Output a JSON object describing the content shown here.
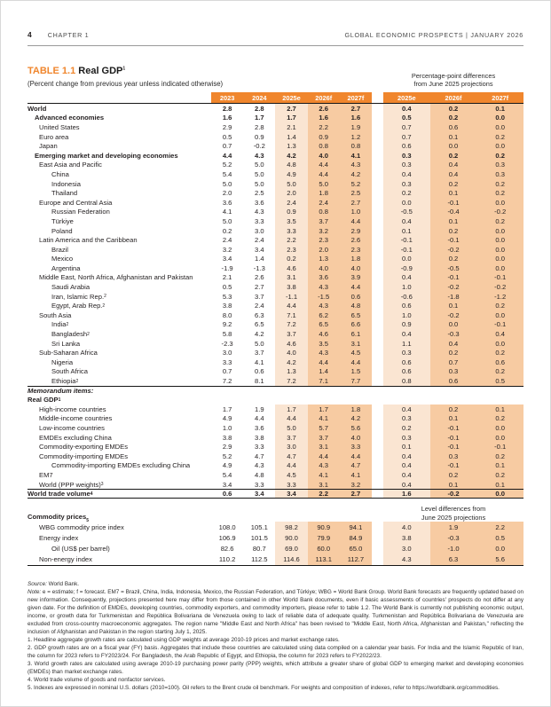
{
  "page_header": {
    "page_number": "4",
    "chapter": "CHAPTER 1",
    "right": "GLOBAL ECONOMIC PROSPECTS | JANUARY 2026"
  },
  "table": {
    "label": "TABLE 1.1",
    "title": "Real GDP",
    "title_sup": "1",
    "subtitle": "(Percent change from previous year unless indicated otherwise)",
    "right_note_line1": "Percentage-point differences",
    "right_note_line2": "from June 2025 projections",
    "columns": [
      "2023",
      "2024",
      "2025e",
      "2026f",
      "2027f"
    ],
    "diff_columns": [
      "2025e",
      "2026f",
      "2027f"
    ],
    "main_rows": [
      {
        "label": "World",
        "indent": 0,
        "bold": true,
        "values": [
          "2.8",
          "2.8",
          "2.7",
          "2.6",
          "2.7"
        ],
        "diffs": [
          "0.4",
          "0.2",
          "0.1"
        ]
      },
      {
        "label": "Advanced economies",
        "indent": 1,
        "bold": true,
        "values": [
          "1.6",
          "1.7",
          "1.7",
          "1.6",
          "1.6"
        ],
        "diffs": [
          "0.5",
          "0.2",
          "0.0"
        ]
      },
      {
        "label": "United States",
        "indent": 2,
        "values": [
          "2.9",
          "2.8",
          "2.1",
          "2.2",
          "1.9"
        ],
        "diffs": [
          "0.7",
          "0.6",
          "0.0"
        ]
      },
      {
        "label": "Euro area",
        "indent": 2,
        "values": [
          "0.5",
          "0.9",
          "1.4",
          "0.9",
          "1.2"
        ],
        "diffs": [
          "0.7",
          "0.1",
          "0.2"
        ]
      },
      {
        "label": "Japan",
        "indent": 2,
        "values": [
          "0.7",
          "-0.2",
          "1.3",
          "0.8",
          "0.8"
        ],
        "diffs": [
          "0.6",
          "0.0",
          "0.0"
        ]
      },
      {
        "label": "Emerging market and developing economies",
        "indent": 1,
        "bold": true,
        "values": [
          "4.4",
          "4.3",
          "4.2",
          "4.0",
          "4.1"
        ],
        "diffs": [
          "0.3",
          "0.2",
          "0.2"
        ]
      },
      {
        "label": "East Asia and Pacific",
        "indent": 2,
        "values": [
          "5.2",
          "5.0",
          "4.8",
          "4.4",
          "4.3"
        ],
        "diffs": [
          "0.3",
          "0.4",
          "0.3"
        ]
      },
      {
        "label": "China",
        "indent": 3,
        "values": [
          "5.4",
          "5.0",
          "4.9",
          "4.4",
          "4.2"
        ],
        "diffs": [
          "0.4",
          "0.4",
          "0.3"
        ]
      },
      {
        "label": "Indonesia",
        "indent": 3,
        "values": [
          "5.0",
          "5.0",
          "5.0",
          "5.0",
          "5.2"
        ],
        "diffs": [
          "0.3",
          "0.2",
          "0.2"
        ]
      },
      {
        "label": "Thailand",
        "indent": 3,
        "values": [
          "2.0",
          "2.5",
          "2.0",
          "1.8",
          "2.5"
        ],
        "diffs": [
          "0.2",
          "0.1",
          "0.2"
        ]
      },
      {
        "label": "Europe and Central Asia",
        "indent": 2,
        "values": [
          "3.6",
          "3.6",
          "2.4",
          "2.4",
          "2.7"
        ],
        "diffs": [
          "0.0",
          "-0.1",
          "0.0"
        ]
      },
      {
        "label": "Russian Federation",
        "indent": 3,
        "values": [
          "4.1",
          "4.3",
          "0.9",
          "0.8",
          "1.0"
        ],
        "diffs": [
          "-0.5",
          "-0.4",
          "-0.2"
        ]
      },
      {
        "label": "Türkiye",
        "indent": 3,
        "values": [
          "5.0",
          "3.3",
          "3.5",
          "3.7",
          "4.4"
        ],
        "diffs": [
          "0.4",
          "0.1",
          "0.2"
        ]
      },
      {
        "label": "Poland",
        "indent": 3,
        "values": [
          "0.2",
          "3.0",
          "3.3",
          "3.2",
          "2.9"
        ],
        "diffs": [
          "0.1",
          "0.2",
          "0.0"
        ]
      },
      {
        "label": "Latin America and the Caribbean",
        "indent": 2,
        "values": [
          "2.4",
          "2.4",
          "2.2",
          "2.3",
          "2.6"
        ],
        "diffs": [
          "-0.1",
          "-0.1",
          "0.0"
        ]
      },
      {
        "label": "Brazil",
        "indent": 3,
        "values": [
          "3.2",
          "3.4",
          "2.3",
          "2.0",
          "2.3"
        ],
        "diffs": [
          "-0.1",
          "-0.2",
          "0.0"
        ]
      },
      {
        "label": "Mexico",
        "indent": 3,
        "values": [
          "3.4",
          "1.4",
          "0.2",
          "1.3",
          "1.8"
        ],
        "diffs": [
          "0.0",
          "0.2",
          "0.0"
        ]
      },
      {
        "label": "Argentina",
        "indent": 3,
        "values": [
          "-1.9",
          "-1.3",
          "4.6",
          "4.0",
          "4.0"
        ],
        "diffs": [
          "-0.9",
          "-0.5",
          "0.0"
        ]
      },
      {
        "label": "Middle East, North Africa, Afghanistan and Pakistan",
        "indent": 2,
        "values": [
          "2.1",
          "2.6",
          "3.1",
          "3.6",
          "3.9"
        ],
        "diffs": [
          "0.4",
          "-0.1",
          "-0.1"
        ]
      },
      {
        "label": "Saudi Arabia",
        "indent": 3,
        "values": [
          "0.5",
          "2.7",
          "3.8",
          "4.3",
          "4.4"
        ],
        "diffs": [
          "1.0",
          "-0.2",
          "-0.2"
        ]
      },
      {
        "label": "Iran, Islamic Rep.",
        "sup": "2",
        "indent": 3,
        "values": [
          "5.3",
          "3.7",
          "-1.1",
          "-1.5",
          "0.6"
        ],
        "diffs": [
          "-0.6",
          "-1.8",
          "-1.2"
        ]
      },
      {
        "label": "Egypt, Arab Rep.",
        "sup": "2",
        "indent": 3,
        "values": [
          "3.8",
          "2.4",
          "4.4",
          "4.3",
          "4.8"
        ],
        "diffs": [
          "0.6",
          "0.1",
          "0.2"
        ]
      },
      {
        "label": "South Asia",
        "indent": 2,
        "values": [
          "8.0",
          "6.3",
          "7.1",
          "6.2",
          "6.5"
        ],
        "diffs": [
          "1.0",
          "-0.2",
          "0.0"
        ]
      },
      {
        "label": "India",
        "sup": "2",
        "indent": 3,
        "values": [
          "9.2",
          "6.5",
          "7.2",
          "6.5",
          "6.6"
        ],
        "diffs": [
          "0.9",
          "0.0",
          "-0.1"
        ]
      },
      {
        "label": "Bangladesh",
        "sup": "2",
        "indent": 3,
        "values": [
          "5.8",
          "4.2",
          "3.7",
          "4.6",
          "6.1"
        ],
        "diffs": [
          "0.4",
          "-0.3",
          "0.4"
        ]
      },
      {
        "label": "Sri Lanka",
        "indent": 3,
        "values": [
          "-2.3",
          "5.0",
          "4.6",
          "3.5",
          "3.1"
        ],
        "diffs": [
          "1.1",
          "0.4",
          "0.0"
        ]
      },
      {
        "label": "Sub-Saharan Africa",
        "indent": 2,
        "values": [
          "3.0",
          "3.7",
          "4.0",
          "4.3",
          "4.5"
        ],
        "diffs": [
          "0.3",
          "0.2",
          "0.2"
        ]
      },
      {
        "label": "Nigeria",
        "indent": 3,
        "values": [
          "3.3",
          "4.1",
          "4.2",
          "4.4",
          "4.4"
        ],
        "diffs": [
          "0.6",
          "0.7",
          "0.6"
        ]
      },
      {
        "label": "South Africa",
        "indent": 3,
        "values": [
          "0.7",
          "0.6",
          "1.3",
          "1.4",
          "1.5"
        ],
        "diffs": [
          "0.6",
          "0.3",
          "0.2"
        ]
      },
      {
        "label": "Ethiopia",
        "sup": "2",
        "indent": 3,
        "values": [
          "7.2",
          "8.1",
          "7.2",
          "7.1",
          "7.7"
        ],
        "diffs": [
          "0.8",
          "0.6",
          "0.5"
        ]
      }
    ],
    "memo_rows": [
      {
        "label": "Memorandum items:",
        "indent": 0,
        "bold": true,
        "italic": true,
        "top": true
      },
      {
        "label": "Real GDP",
        "sup": "1",
        "indent": 0,
        "bold": true
      },
      {
        "label": "High-income countries",
        "indent": 2,
        "values": [
          "1.7",
          "1.9",
          "1.7",
          "1.7",
          "1.8"
        ],
        "diffs": [
          "0.4",
          "0.2",
          "0.1"
        ]
      },
      {
        "label": "Middle-income countries",
        "indent": 2,
        "values": [
          "4.9",
          "4.4",
          "4.4",
          "4.1",
          "4.2"
        ],
        "diffs": [
          "0.3",
          "0.1",
          "0.2"
        ]
      },
      {
        "label": "Low-income countries",
        "indent": 2,
        "values": [
          "1.0",
          "3.6",
          "5.0",
          "5.7",
          "5.6"
        ],
        "diffs": [
          "0.2",
          "-0.1",
          "0.0"
        ]
      },
      {
        "label": "EMDEs excluding China",
        "indent": 2,
        "values": [
          "3.8",
          "3.8",
          "3.7",
          "3.7",
          "4.0"
        ],
        "diffs": [
          "0.3",
          "-0.1",
          "0.0"
        ]
      },
      {
        "label": "Commodity-exporting EMDEs",
        "indent": 2,
        "values": [
          "2.9",
          "3.3",
          "3.0",
          "3.1",
          "3.3"
        ],
        "diffs": [
          "0.1",
          "-0.1",
          "-0.1"
        ]
      },
      {
        "label": "Commodity-importing EMDEs",
        "indent": 2,
        "values": [
          "5.2",
          "4.7",
          "4.7",
          "4.4",
          "4.4"
        ],
        "diffs": [
          "0.4",
          "0.3",
          "0.2"
        ]
      },
      {
        "label": "Commodity-importing EMDEs excluding China",
        "indent": 3,
        "values": [
          "4.9",
          "4.3",
          "4.4",
          "4.3",
          "4.7"
        ],
        "diffs": [
          "0.4",
          "-0.1",
          "0.1"
        ]
      },
      {
        "label": "EM7",
        "indent": 2,
        "values": [
          "5.4",
          "4.8",
          "4.5",
          "4.1",
          "4.1"
        ],
        "diffs": [
          "0.4",
          "0.2",
          "0.2"
        ]
      },
      {
        "label": "World (PPP weights)",
        "sup": "3",
        "indent": 2,
        "values": [
          "3.4",
          "3.3",
          "3.3",
          "3.1",
          "3.2"
        ],
        "diffs": [
          "0.4",
          "0.1",
          "0.1"
        ]
      },
      {
        "label": "World trade volume",
        "sup": "4",
        "indent": 0,
        "bold": true,
        "top": true,
        "bottom": true,
        "values": [
          "0.6",
          "3.4",
          "3.4",
          "2.2",
          "2.7"
        ],
        "diffs": [
          "1.6",
          "-0.2",
          "0.0"
        ]
      }
    ],
    "commodity_header": {
      "label": "Commodity prices",
      "sup": "5",
      "note_line1": "Level differences from",
      "note_line2": "June 2025 projections"
    },
    "commodity_rows": [
      {
        "label": "WBG commodity price index",
        "indent": 2,
        "values": [
          "108.0",
          "105.1",
          "98.2",
          "90.9",
          "94.1"
        ],
        "diffs": [
          "4.0",
          "1.9",
          "2.2"
        ]
      },
      {
        "label": "Energy index",
        "indent": 2,
        "values": [
          "106.9",
          "101.5",
          "90.0",
          "79.9",
          "84.9"
        ],
        "diffs": [
          "3.8",
          "-0.3",
          "0.5"
        ]
      },
      {
        "label": "Oil (US$ per barrel)",
        "indent": 3,
        "values": [
          "82.6",
          "80.7",
          "69.0",
          "60.0",
          "65.0"
        ],
        "diffs": [
          "3.0",
          "-1.0",
          "0.0"
        ]
      },
      {
        "label": "Non-energy index",
        "indent": 2,
        "bottom": true,
        "values": [
          "110.2",
          "112.5",
          "114.6",
          "113.1",
          "112.7"
        ],
        "diffs": [
          "4.3",
          "6.3",
          "5.6"
        ]
      }
    ]
  },
  "colors": {
    "accent_orange": "#f0862d",
    "shade_light": "#fae5d2",
    "shade_dark": "#f7cba2"
  },
  "footnotes": {
    "source_label": "Source:",
    "source_text": " World Bank.",
    "note_label": "Note:",
    "note_text": " e = estimate; f = forecast. EM7 = Brazil, China, India, Indonesia, Mexico, the Russian Federation, and Türkiye; WBG = World Bank Group. World Bank forecasts are frequently updated based on new information. Consequently, projections presented here may differ from those contained in other World Bank documents, even if basic assessments of countries' prospects do not differ at any given date. For the definition of EMDEs, developing countries, commodity exporters, and commodity importers, please refer to table 1.2. The World Bank is currently not publishing economic output, income, or growth data for Turkmenistan and República Bolivariana de Venezuela owing to lack of reliable data of adequate quality. Turkmenistan and República Bolivariana de Venezuela are excluded from cross-country macroeconomic aggregates. The region name \"Middle East and North Africa\" has been revised to \"Middle East, North Africa, Afghanistan and Pakistan,\" reflecting the inclusion of Afghanistan and Pakistan in the region starting July 1, 2025.",
    "items": [
      "1. Headline aggregate growth rates are calculated using GDP weights at average 2010-19 prices and market exchange rates.",
      "2. GDP growth rates are on a fiscal year (FY) basis. Aggregates that include these countries are calculated using data compiled on a calendar year basis. For India and the Islamic Republic of Iran, the column for 2023 refers to FY2023/24. For Bangladesh, the Arab Republic of Egypt, and Ethiopia, the column for 2023 refers to FY2022/23.",
      "3. World growth rates are calculated using average 2010-19 purchasing power parity (PPP) weights, which attribute a greater share of global GDP to emerging market and developing economies (EMDEs) than market exchange rates.",
      "4. World trade volume of goods and nonfactor services.",
      "5. Indexes are expressed in nominal U.S. dollars (2010=100). Oil refers to the Brent crude oil benchmark. For weights and composition of indexes, refer to https://worldbank.org/commodities."
    ]
  }
}
